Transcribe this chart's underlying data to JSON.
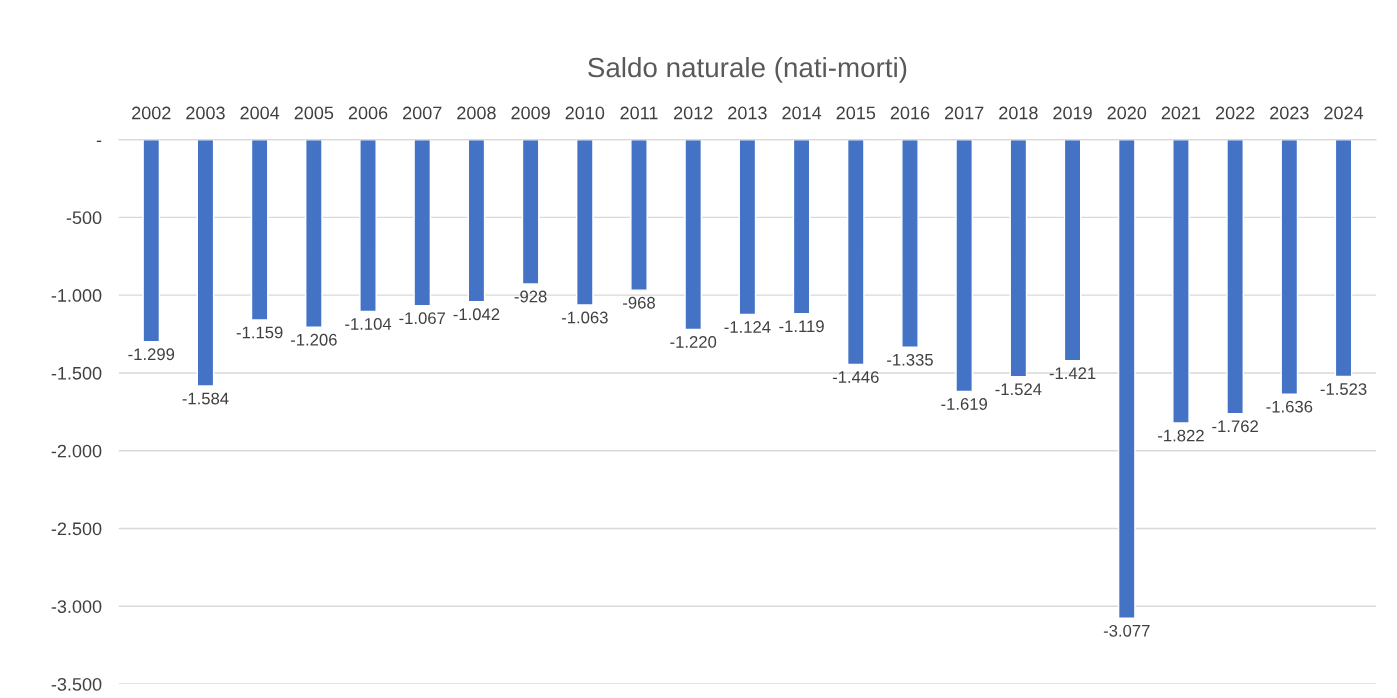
{
  "chart_data": {
    "type": "bar",
    "title": "Saldo naturale (nati-morti)",
    "categories": [
      "2002",
      "2003",
      "2004",
      "2005",
      "2006",
      "2007",
      "2008",
      "2009",
      "2010",
      "2011",
      "2012",
      "2013",
      "2014",
      "2015",
      "2016",
      "2017",
      "2018",
      "2019",
      "2020",
      "2021",
      "2022",
      "2023",
      "2024"
    ],
    "values": [
      -1299,
      -1584,
      -1159,
      -1206,
      -1104,
      -1067,
      -1042,
      -928,
      -1063,
      -968,
      -1220,
      -1124,
      -1119,
      -1446,
      -1335,
      -1619,
      -1524,
      -1421,
      -3077,
      -1822,
      -1762,
      -1636,
      -1523
    ],
    "value_labels": [
      "-1.299",
      "-1.584",
      "-1.159",
      "-1.206",
      "-1.104",
      "-1.067",
      "-1.042",
      "-928",
      "-1.063",
      "-968",
      "-1.220",
      "-1.124",
      "-1.119",
      "-1.446",
      "-1.335",
      "-1.619",
      "-1.524",
      "-1.421",
      "-3.077",
      "-1.822",
      "-1.762",
      "-1.636",
      "-1.523"
    ],
    "color": "#4472c4",
    "ylim": [
      -3500,
      0
    ],
    "yticks": [
      {
        "value": 0,
        "label": "-"
      },
      {
        "value": -500,
        "label": "-500"
      },
      {
        "value": -1000,
        "label": "-1.000"
      },
      {
        "value": -1500,
        "label": "-1.500"
      },
      {
        "value": -2000,
        "label": "-2.000"
      },
      {
        "value": -2500,
        "label": "-2.500"
      },
      {
        "value": -3000,
        "label": "-3.000"
      },
      {
        "value": -3500,
        "label": "-3.500"
      }
    ],
    "grid": "y"
  }
}
